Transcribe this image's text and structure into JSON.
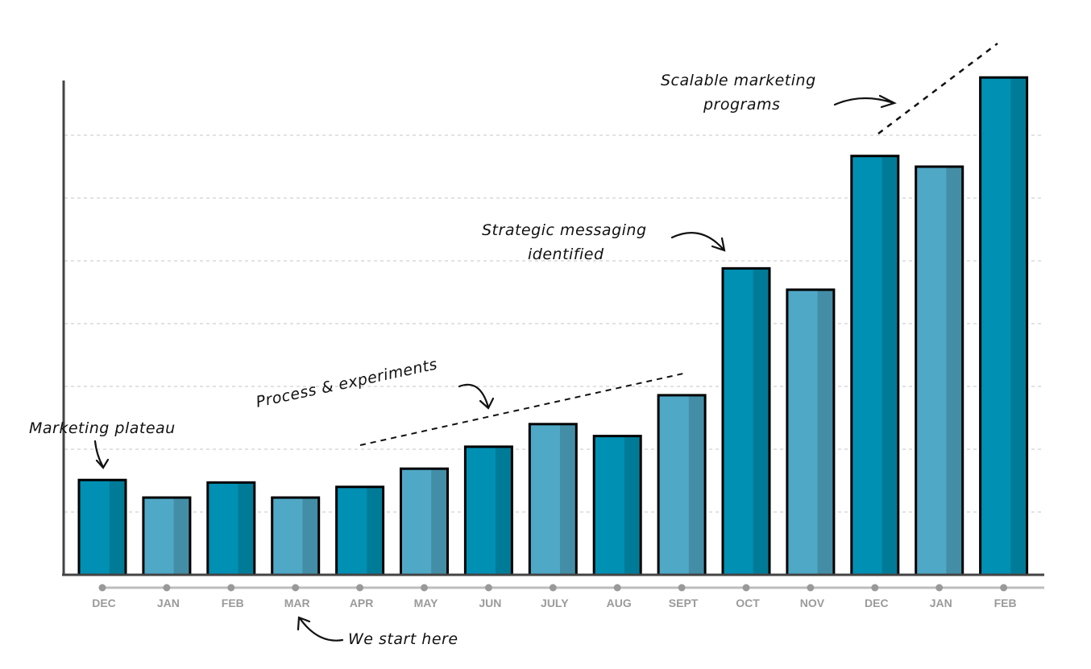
{
  "chart_data": {
    "type": "bar",
    "title": "",
    "xlabel": "",
    "ylabel": "",
    "ylim": [
      0,
      7.9
    ],
    "grid": true,
    "categories": [
      "DEC",
      "JAN",
      "FEB",
      "MAR",
      "APR",
      "MAY",
      "JUN",
      "JULY",
      "AUG",
      "SEPT",
      "OCT",
      "NOV",
      "DEC",
      "JAN",
      "FEB"
    ],
    "values": [
      1.51,
      1.23,
      1.47,
      1.23,
      1.4,
      1.69,
      2.04,
      2.4,
      2.21,
      2.86,
      4.88,
      4.54,
      6.67,
      6.5,
      7.92
    ],
    "annotations": {
      "plateau": "Marketing plateau",
      "process": "Process & experiments",
      "strategic_1": "Strategic messaging",
      "strategic_2": "identified",
      "scalable_1": "Scalable marketing",
      "scalable_2": "programs",
      "start": "We start here"
    }
  },
  "colors": {
    "dark": "#0090b3",
    "dark_shade": "#007b97",
    "light": "#4fa8c6",
    "light_shade": "#438ea6",
    "axis": "#444444",
    "grid": "#c4c4c4",
    "tick": "#9a9a9a"
  }
}
